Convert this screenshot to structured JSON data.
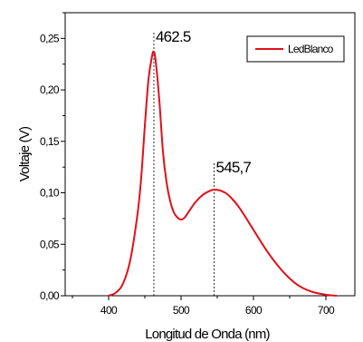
{
  "chart_data": {
    "type": "line",
    "xlabel": "Longitud de Onda (nm)",
    "ylabel": "Voltaje (V)",
    "xlim": [
      340,
      740
    ],
    "ylim": [
      0,
      0.275
    ],
    "x_ticks": [
      400,
      500,
      600,
      700
    ],
    "x_tick_labels": [
      "400",
      "500",
      "600",
      "700"
    ],
    "y_ticks": [
      0.0,
      0.05,
      0.1,
      0.15,
      0.2,
      0.25
    ],
    "y_tick_labels": [
      "0,00",
      "0,05",
      "0,10",
      "0,15",
      "0,20",
      "0,25"
    ],
    "legend": {
      "placement": "top-right"
    },
    "series": [
      {
        "name": "LedBlanco",
        "color": "#e0101a",
        "x": [
          400,
          410,
          420,
          430,
          440,
          445,
          450,
          455,
          460,
          462.5,
          465,
          470,
          475,
          480,
          485,
          490,
          495,
          500,
          505,
          510,
          520,
          530,
          540,
          545.7,
          555,
          565,
          580,
          600,
          620,
          640,
          660,
          680,
          700,
          715
        ],
        "y": [
          0.0,
          0.003,
          0.012,
          0.035,
          0.08,
          0.115,
          0.165,
          0.21,
          0.233,
          0.237,
          0.228,
          0.19,
          0.14,
          0.11,
          0.092,
          0.081,
          0.076,
          0.074,
          0.076,
          0.081,
          0.091,
          0.098,
          0.102,
          0.103,
          0.102,
          0.098,
          0.086,
          0.064,
          0.042,
          0.024,
          0.011,
          0.004,
          0.001,
          0.0
        ]
      }
    ],
    "annotations": [
      {
        "x": 462.5,
        "label": "462.5"
      },
      {
        "x": 545.7,
        "label": "545,7"
      }
    ]
  }
}
